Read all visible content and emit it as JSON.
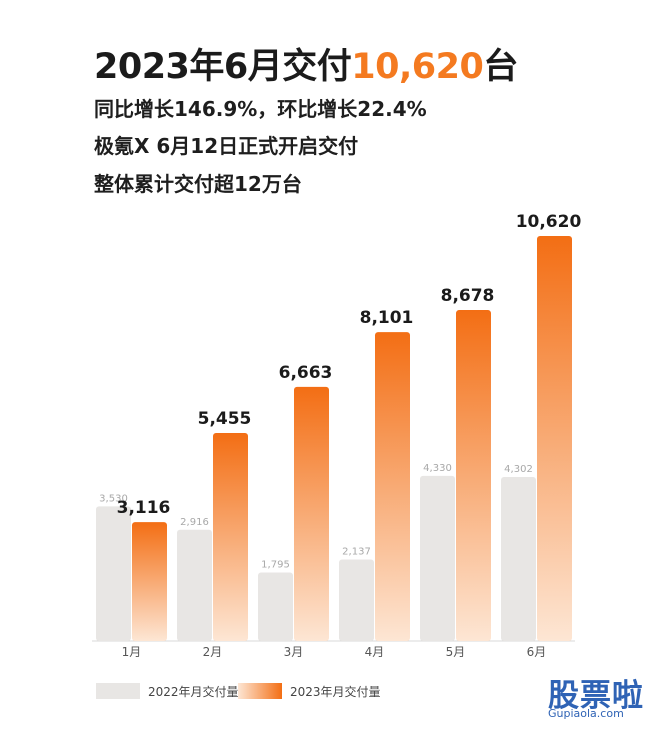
{
  "header": {
    "title_prefix": "2023年6月交付",
    "title_number": "10,620",
    "title_suffix": "台",
    "line1": "同比增长146.9%，环比增长22.4%",
    "line2": "极氪X 6月12日正式开启交付",
    "line3": "整体累计交付超12万台"
  },
  "colors": {
    "accent": "#f47a20",
    "bar_2022": "#e8e6e4",
    "bar_2023_top": "#f36e14",
    "bar_2023_bottom": "#fde6d4",
    "watermark": "#2f63b5"
  },
  "chart_data": {
    "type": "bar",
    "categories": [
      "1月",
      "2月",
      "3月",
      "4月",
      "5月",
      "6月"
    ],
    "series": [
      {
        "name": "2022年月交付量",
        "values": [
          3530,
          2916,
          1795,
          2137,
          4330,
          4302
        ]
      },
      {
        "name": "2023年月交付量",
        "values": [
          3116,
          5455,
          6663,
          8101,
          8678,
          10620
        ]
      }
    ],
    "labels_2022": [
      "3,530",
      "2,916",
      "1,795",
      "2,137",
      "4,330",
      "4,302"
    ],
    "labels_2023": [
      "3,116",
      "5,455",
      "6,663",
      "8,101",
      "8,678",
      "10,620"
    ],
    "ylim": [
      0,
      10620
    ],
    "grid": false,
    "legend_position": "bottom-left"
  },
  "legend": {
    "label_2022": "2022年月交付量",
    "label_2023": "2023年月交付量"
  },
  "watermark": {
    "text": "股票啦",
    "url": "Gupiaola.com"
  }
}
